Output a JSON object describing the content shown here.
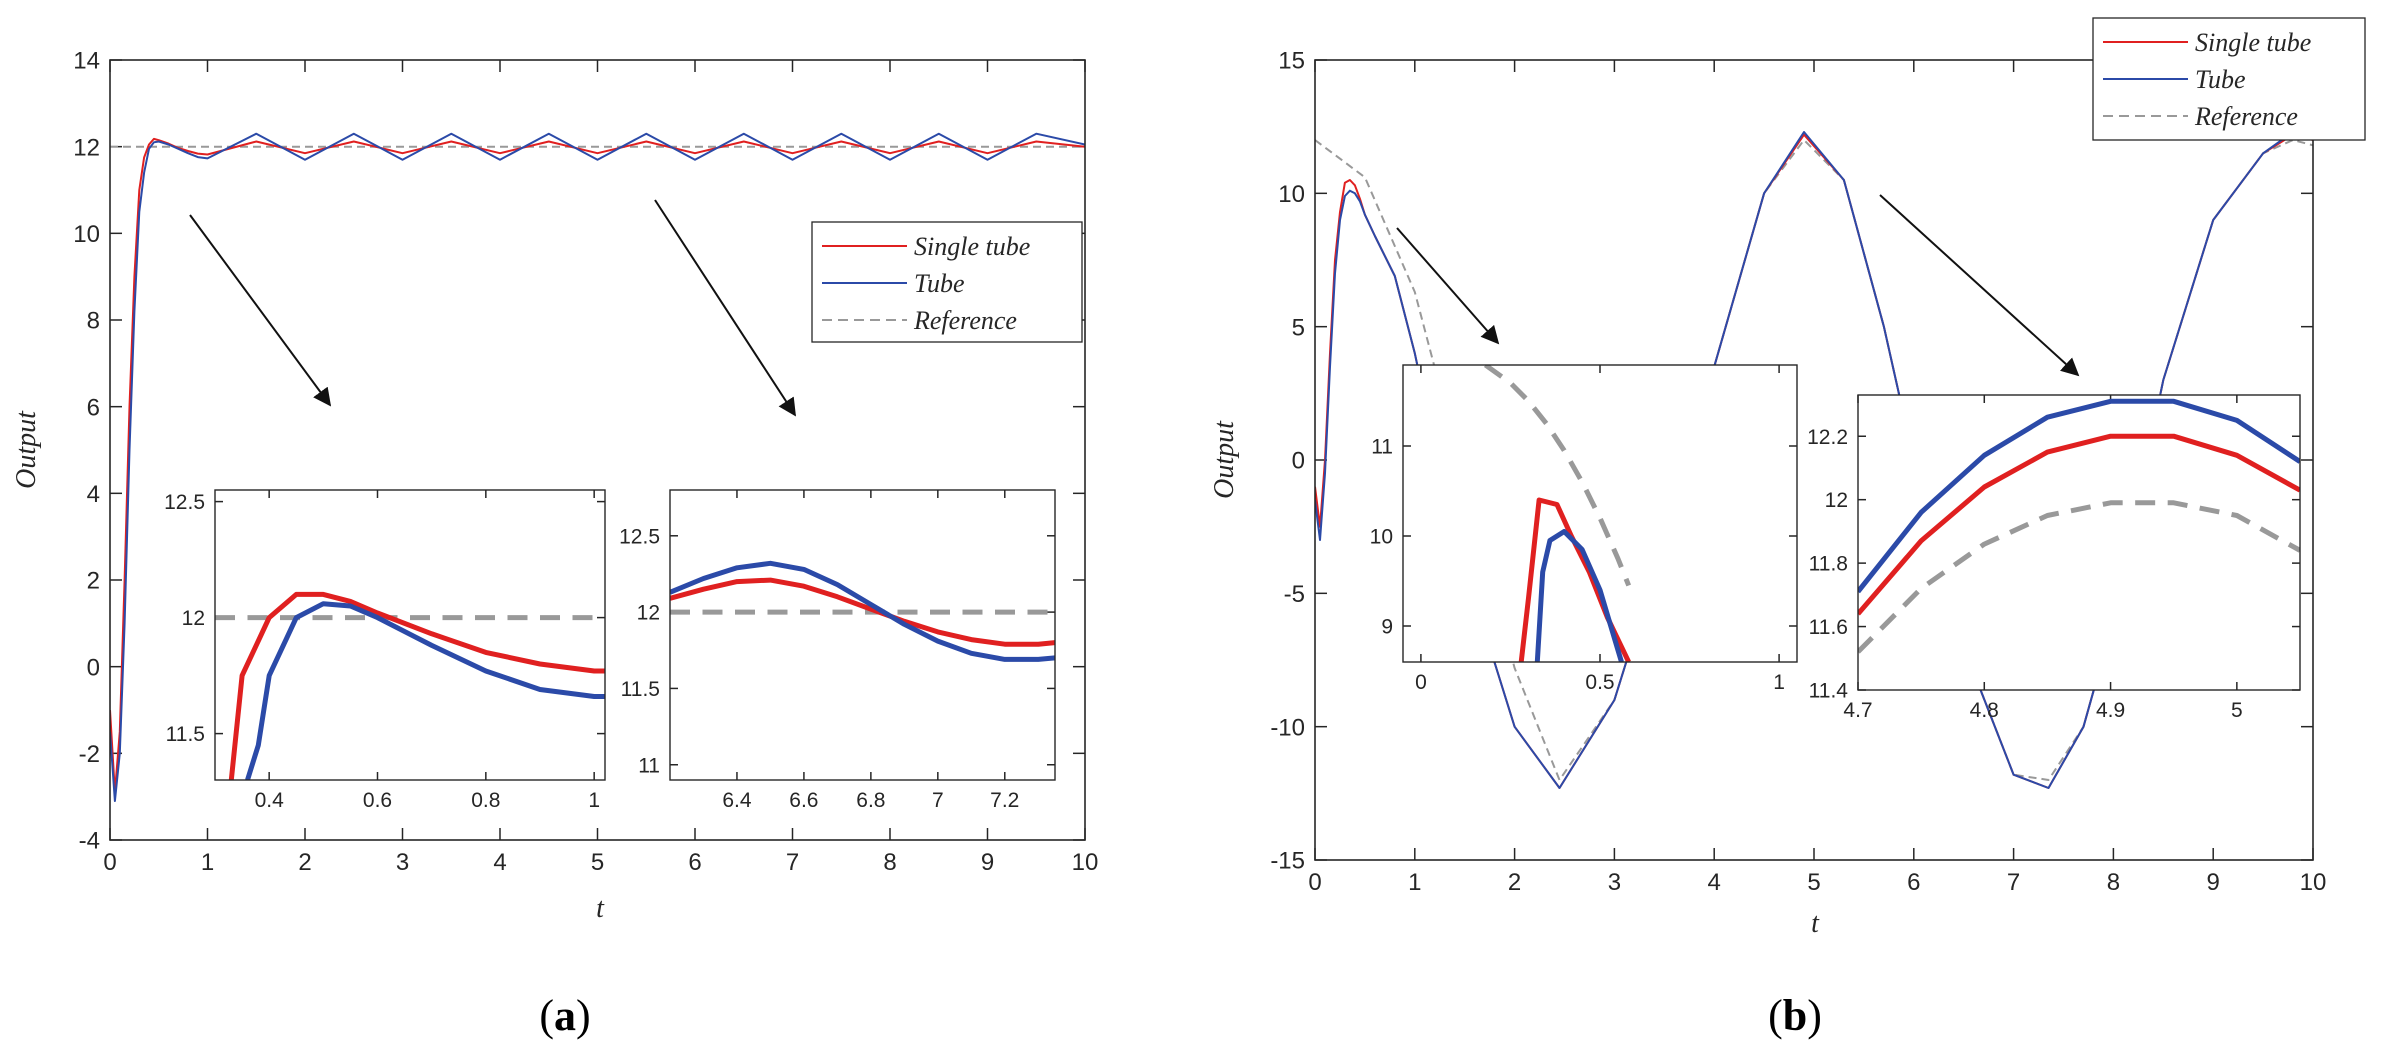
{
  "figure": {
    "panels": [
      {
        "id": "a",
        "label_open": "(",
        "label_letter": "a",
        "label_close": ")"
      },
      {
        "id": "b",
        "label_open": "(",
        "label_letter": "b",
        "label_close": ")"
      }
    ]
  },
  "chart_data": [
    {
      "panel": "a",
      "type": "line",
      "title": "",
      "xlabel": "t",
      "ylabel": "Output",
      "xlim": [
        0,
        10
      ],
      "ylim": [
        -4,
        14
      ],
      "xticks": [
        0,
        1,
        2,
        3,
        4,
        5,
        6,
        7,
        8,
        9,
        10
      ],
      "yticks": [
        -4,
        -2,
        0,
        2,
        4,
        6,
        8,
        10,
        12,
        14
      ],
      "legend": {
        "location": "right",
        "entries": [
          "Single tube",
          "Tube",
          "Reference"
        ]
      },
      "series": [
        {
          "name": "Single tube",
          "color": "#e02020",
          "x": [
            0,
            0.05,
            0.1,
            0.15,
            0.2,
            0.25,
            0.3,
            0.35,
            0.4,
            0.45,
            0.5,
            0.6,
            0.7,
            0.8,
            0.9,
            1.0,
            1.5,
            2.0,
            2.5,
            3.0,
            3.5,
            4.0,
            4.5,
            5.0,
            5.5,
            6.0,
            6.5,
            7.0,
            7.5,
            8.0,
            8.5,
            9.0,
            9.5,
            10.0
          ],
          "y": [
            -1.0,
            -2.9,
            -1.5,
            2.0,
            6.0,
            9.0,
            11.0,
            11.75,
            12.05,
            12.18,
            12.15,
            12.07,
            11.97,
            11.9,
            11.84,
            11.82,
            12.12,
            11.85,
            12.12,
            11.85,
            12.12,
            11.85,
            12.12,
            11.85,
            12.12,
            11.85,
            12.12,
            11.85,
            12.12,
            11.85,
            12.12,
            11.85,
            12.12,
            12.0
          ]
        },
        {
          "name": "Tube",
          "color": "#2b4aa8",
          "x": [
            0,
            0.05,
            0.1,
            0.15,
            0.2,
            0.25,
            0.3,
            0.35,
            0.4,
            0.45,
            0.5,
            0.6,
            0.7,
            0.8,
            0.9,
            1.0,
            1.5,
            2.0,
            2.5,
            3.0,
            3.5,
            4.0,
            4.5,
            5.0,
            5.5,
            6.0,
            6.5,
            7.0,
            7.5,
            8.0,
            8.5,
            9.0,
            9.5,
            10.0
          ],
          "y": [
            -1.5,
            -3.1,
            -2.0,
            1.0,
            5.0,
            8.2,
            10.5,
            11.4,
            11.95,
            12.1,
            12.12,
            12.05,
            11.95,
            11.85,
            11.76,
            11.73,
            12.3,
            11.7,
            12.3,
            11.7,
            12.3,
            11.7,
            12.3,
            11.7,
            12.3,
            11.7,
            12.3,
            11.7,
            12.3,
            11.7,
            12.3,
            11.7,
            12.3,
            12.05
          ]
        },
        {
          "name": "Reference",
          "color": "#999999",
          "dashed": true,
          "x": [
            0,
            10
          ],
          "y": [
            12,
            12
          ]
        }
      ],
      "annotations": [
        "arrow",
        "arrow"
      ],
      "insets": [
        {
          "type": "line",
          "xlim": [
            0.3,
            1.02
          ],
          "ylim": [
            11.3,
            12.55
          ],
          "xticks": [
            0.4,
            0.6,
            0.8,
            1
          ],
          "yticks": [
            11.5,
            12,
            12.5
          ],
          "series": [
            {
              "name": "Single tube",
              "x": [
                0.33,
                0.35,
                0.4,
                0.45,
                0.5,
                0.55,
                0.6,
                0.7,
                0.8,
                0.9,
                1.0,
                1.02
              ],
              "y": [
                11.3,
                11.75,
                12.0,
                12.1,
                12.1,
                12.07,
                12.02,
                11.93,
                11.85,
                11.8,
                11.77,
                11.77
              ]
            },
            {
              "name": "Tube",
              "x": [
                0.36,
                0.38,
                0.4,
                0.45,
                0.5,
                0.55,
                0.6,
                0.7,
                0.8,
                0.9,
                1.0,
                1.02
              ],
              "y": [
                11.3,
                11.45,
                11.75,
                12.0,
                12.06,
                12.05,
                12.0,
                11.88,
                11.77,
                11.69,
                11.66,
                11.66
              ]
            },
            {
              "name": "Reference",
              "dashed": true,
              "x": [
                0.3,
                1.02
              ],
              "y": [
                12,
                12
              ]
            }
          ]
        },
        {
          "type": "line",
          "xlim": [
            6.2,
            7.35
          ],
          "ylim": [
            10.9,
            12.8
          ],
          "xticks": [
            6.4,
            6.6,
            6.8,
            7,
            7.2
          ],
          "yticks": [
            11,
            11.5,
            12,
            12.5
          ],
          "series": [
            {
              "name": "Single tube",
              "x": [
                6.2,
                6.3,
                6.4,
                6.5,
                6.6,
                6.7,
                6.8,
                6.9,
                7.0,
                7.1,
                7.2,
                7.3,
                7.35
              ],
              "y": [
                12.09,
                12.15,
                12.2,
                12.21,
                12.17,
                12.1,
                12.02,
                11.94,
                11.87,
                11.82,
                11.79,
                11.79,
                11.8
              ]
            },
            {
              "name": "Tube",
              "x": [
                6.2,
                6.3,
                6.4,
                6.5,
                6.6,
                6.7,
                6.8,
                6.9,
                7.0,
                7.1,
                7.2,
                7.3,
                7.35
              ],
              "y": [
                12.13,
                12.22,
                12.29,
                12.32,
                12.28,
                12.18,
                12.05,
                11.92,
                11.81,
                11.73,
                11.69,
                11.69,
                11.7
              ]
            },
            {
              "name": "Reference",
              "dashed": true,
              "x": [
                6.2,
                7.35
              ],
              "y": [
                12,
                12
              ]
            }
          ]
        }
      ]
    },
    {
      "panel": "b",
      "type": "line",
      "title": "",
      "xlabel": "t",
      "ylabel": "Output",
      "xlim": [
        0,
        10
      ],
      "ylim": [
        -15,
        15
      ],
      "xticks": [
        0,
        1,
        2,
        3,
        4,
        5,
        6,
        7,
        8,
        9,
        10
      ],
      "yticks": [
        -15,
        -10,
        -5,
        0,
        5,
        10,
        15
      ],
      "legend": {
        "location": "top-right",
        "entries": [
          "Single tube",
          "Tube",
          "Reference"
        ]
      },
      "series": [
        {
          "name": "Single tube",
          "color": "#e02020",
          "x": [
            0,
            0.05,
            0.1,
            0.15,
            0.2,
            0.25,
            0.3,
            0.35,
            0.4,
            0.45,
            0.5,
            0.6,
            0.8,
            1.0,
            1.2,
            1.5,
            2.0,
            2.45,
            3.0,
            3.5,
            4.0,
            4.5,
            4.9,
            5.3,
            5.7,
            6.0,
            6.5,
            7.0,
            7.35,
            7.7,
            8.0,
            8.5,
            9.0,
            9.5,
            9.8,
            10.0
          ],
          "y": [
            -1.0,
            -2.5,
            0.0,
            4.0,
            7.5,
            9.3,
            10.4,
            10.5,
            10.3,
            9.8,
            9.2,
            8.4,
            6.9,
            4.0,
            0.5,
            -4.0,
            -10.0,
            -12.3,
            -9.0,
            -3.0,
            3.5,
            10.0,
            12.2,
            10.5,
            5.0,
            0.0,
            -7.0,
            -11.8,
            -12.3,
            -10.0,
            -6.0,
            3.0,
            9.0,
            11.5,
            12.2,
            12.0
          ]
        },
        {
          "name": "Tube",
          "color": "#2b4aa8",
          "x": [
            0,
            0.05,
            0.1,
            0.15,
            0.2,
            0.25,
            0.3,
            0.35,
            0.4,
            0.45,
            0.5,
            0.6,
            0.8,
            1.0,
            1.2,
            1.5,
            2.0,
            2.45,
            3.0,
            3.5,
            4.0,
            4.5,
            4.9,
            5.3,
            5.7,
            6.0,
            6.5,
            7.0,
            7.35,
            7.7,
            8.0,
            8.5,
            9.0,
            9.5,
            9.8,
            10.0
          ],
          "y": [
            -1.5,
            -3.0,
            -0.5,
            3.5,
            7.0,
            9.0,
            9.9,
            10.1,
            10.0,
            9.7,
            9.2,
            8.4,
            6.9,
            4.0,
            0.5,
            -4.0,
            -10.0,
            -12.3,
            -9.0,
            -3.0,
            3.5,
            10.0,
            12.3,
            10.5,
            5.0,
            0.0,
            -7.0,
            -11.8,
            -12.3,
            -10.0,
            -6.0,
            3.0,
            9.0,
            11.5,
            12.3,
            12.1
          ]
        },
        {
          "name": "Reference",
          "color": "#999999",
          "dashed": true,
          "x": [
            0,
            0.5,
            1.0,
            1.5,
            2.0,
            2.45,
            3.0,
            3.5,
            4.0,
            4.5,
            4.9,
            5.3,
            5.7,
            6.0,
            6.5,
            7.0,
            7.35,
            7.7,
            8.0,
            8.5,
            9.0,
            9.5,
            9.8,
            10.0
          ],
          "y": [
            12.0,
            10.6,
            6.3,
            -0.8,
            -7.8,
            -12.0,
            -9.0,
            -3.0,
            3.5,
            10.0,
            12.0,
            10.5,
            5.0,
            0.0,
            -7.0,
            -11.8,
            -12.0,
            -10.0,
            -6.0,
            3.0,
            9.0,
            11.5,
            12.0,
            11.8
          ]
        }
      ],
      "annotations": [
        "arrow",
        "arrow"
      ],
      "insets": [
        {
          "type": "line",
          "xlim": [
            -0.05,
            1.05
          ],
          "ylim": [
            8.6,
            11.9
          ],
          "xticks": [
            0,
            0.5,
            1
          ],
          "yticks": [
            9,
            10,
            11
          ],
          "series": [
            {
              "name": "Single tube",
              "x": [
                0.28,
                0.3,
                0.33,
                0.38,
                0.42,
                0.47,
                0.52,
                0.58
              ],
              "y": [
                8.6,
                9.3,
                10.4,
                10.35,
                10.0,
                9.6,
                9.1,
                8.6
              ]
            },
            {
              "name": "Tube",
              "x": [
                0.325,
                0.34,
                0.36,
                0.4,
                0.45,
                0.5,
                0.56
              ],
              "y": [
                8.6,
                9.6,
                9.95,
                10.05,
                9.85,
                9.4,
                8.6
              ]
            },
            {
              "name": "Reference",
              "dashed": true,
              "x": [
                0.18,
                0.25,
                0.3,
                0.35,
                0.4,
                0.45,
                0.5,
                0.55,
                0.58
              ],
              "y": [
                11.9,
                11.7,
                11.5,
                11.25,
                10.95,
                10.6,
                10.2,
                9.75,
                9.45
              ]
            }
          ]
        },
        {
          "type": "line",
          "xlim": [
            4.7,
            5.05
          ],
          "ylim": [
            11.4,
            12.33
          ],
          "xticks": [
            4.7,
            4.8,
            4.9,
            5
          ],
          "yticks": [
            11.4,
            11.6,
            11.8,
            12,
            12.2
          ],
          "series": [
            {
              "name": "Single tube",
              "x": [
                4.7,
                4.75,
                4.8,
                4.85,
                4.9,
                4.95,
                5.0,
                5.05
              ],
              "y": [
                11.64,
                11.87,
                12.04,
                12.15,
                12.2,
                12.2,
                12.14,
                12.03
              ]
            },
            {
              "name": "Tube",
              "x": [
                4.7,
                4.75,
                4.8,
                4.85,
                4.9,
                4.95,
                5.0,
                5.05
              ],
              "y": [
                11.71,
                11.96,
                12.14,
                12.26,
                12.31,
                12.31,
                12.25,
                12.12
              ]
            },
            {
              "name": "Reference",
              "dashed": true,
              "x": [
                4.7,
                4.75,
                4.8,
                4.85,
                4.9,
                4.95,
                5.0,
                5.05
              ],
              "y": [
                11.52,
                11.72,
                11.86,
                11.95,
                11.99,
                11.99,
                11.95,
                11.84
              ]
            }
          ]
        }
      ]
    }
  ]
}
